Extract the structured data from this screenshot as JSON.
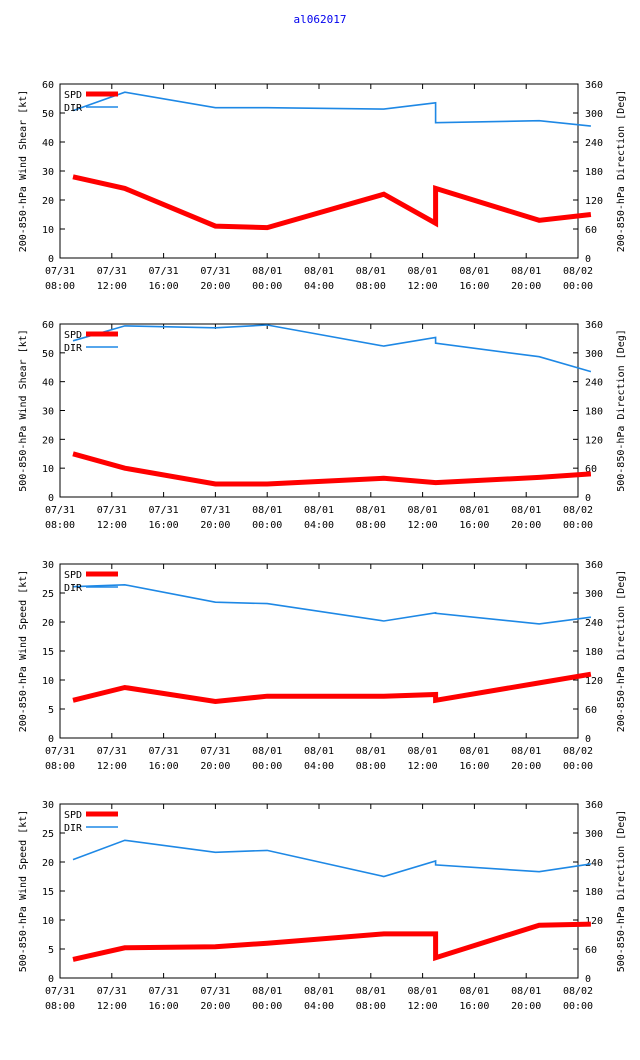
{
  "page_title": "al062017",
  "colors": {
    "spd": "#ff0000",
    "dir": "#1e88e5",
    "title": "#0000ee"
  },
  "chart_data": [
    {
      "type": "line",
      "title": "",
      "ylabel": "200-850-hPa Wind Shear [kt]",
      "y2label": "200-850-hPa Direction [Deg]",
      "ylim": [
        0,
        60
      ],
      "yticks": [
        0,
        10,
        20,
        30,
        40,
        50,
        60
      ],
      "y2lim": [
        0,
        360
      ],
      "y2ticks": [
        0,
        60,
        120,
        180,
        240,
        300,
        360
      ],
      "xlim": [
        0,
        40
      ],
      "xticks": [
        0,
        4,
        8,
        12,
        16,
        20,
        24,
        28,
        32,
        36,
        40
      ],
      "xticklabels": [
        [
          "07/31",
          "08:00"
        ],
        [
          "07/31",
          "12:00"
        ],
        [
          "07/31",
          "16:00"
        ],
        [
          "07/31",
          "20:00"
        ],
        [
          "08/01",
          "00:00"
        ],
        [
          "08/01",
          "04:00"
        ],
        [
          "08/01",
          "08:00"
        ],
        [
          "08/01",
          "12:00"
        ],
        [
          "08/01",
          "16:00"
        ],
        [
          "08/01",
          "20:00"
        ],
        [
          "08/02",
          "00:00"
        ]
      ],
      "legend": [
        "SPD",
        "DIR"
      ],
      "series": [
        {
          "name": "SPD",
          "axis": "left",
          "x": [
            1,
            5,
            12,
            16,
            25,
            29,
            29,
            37,
            41
          ],
          "values": [
            28,
            24,
            11,
            10.5,
            22,
            12,
            24,
            13,
            15
          ]
        },
        {
          "name": "DIR",
          "axis": "right",
          "x": [
            1,
            5,
            12,
            16,
            25,
            29,
            29,
            37,
            41
          ],
          "values": [
            305,
            343,
            311,
            311,
            308,
            321,
            280,
            284,
            273
          ]
        }
      ]
    },
    {
      "type": "line",
      "title": "",
      "ylabel": "500-850-hPa Wind Shear [kt]",
      "y2label": "500-850-hPa Direction [Deg]",
      "ylim": [
        0,
        60
      ],
      "yticks": [
        0,
        10,
        20,
        30,
        40,
        50,
        60
      ],
      "y2lim": [
        0,
        360
      ],
      "y2ticks": [
        0,
        60,
        120,
        180,
        240,
        300,
        360
      ],
      "xlim": [
        0,
        40
      ],
      "xticks": [
        0,
        4,
        8,
        12,
        16,
        20,
        24,
        28,
        32,
        36,
        40
      ],
      "xticklabels": [
        [
          "07/31",
          "08:00"
        ],
        [
          "07/31",
          "12:00"
        ],
        [
          "07/31",
          "16:00"
        ],
        [
          "07/31",
          "20:00"
        ],
        [
          "08/01",
          "00:00"
        ],
        [
          "08/01",
          "04:00"
        ],
        [
          "08/01",
          "08:00"
        ],
        [
          "08/01",
          "12:00"
        ],
        [
          "08/01",
          "16:00"
        ],
        [
          "08/01",
          "20:00"
        ],
        [
          "08/02",
          "00:00"
        ]
      ],
      "legend": [
        "SPD",
        "DIR"
      ],
      "series": [
        {
          "name": "SPD",
          "axis": "left",
          "x": [
            1,
            5,
            12,
            16,
            25,
            29,
            29,
            37,
            41
          ],
          "values": [
            15,
            10,
            4.5,
            4.5,
            6.5,
            5,
            5,
            6.8,
            8
          ]
        },
        {
          "name": "DIR",
          "axis": "right",
          "x": [
            1,
            5,
            12,
            16,
            25,
            29,
            29,
            37,
            41
          ],
          "values": [
            325,
            356,
            352,
            358,
            314,
            332,
            320,
            292,
            261
          ]
        }
      ]
    },
    {
      "type": "line",
      "title": "",
      "ylabel": "200-850-hPa Wind Speed [kt]",
      "y2label": "200-850-hPa Direction [Deg]",
      "ylim": [
        0,
        30
      ],
      "yticks": [
        0,
        5,
        10,
        15,
        20,
        25,
        30
      ],
      "y2lim": [
        0,
        360
      ],
      "y2ticks": [
        0,
        60,
        120,
        180,
        240,
        300,
        360
      ],
      "xlim": [
        0,
        40
      ],
      "xticks": [
        0,
        4,
        8,
        12,
        16,
        20,
        24,
        28,
        32,
        36,
        40
      ],
      "xticklabels": [
        [
          "07/31",
          "08:00"
        ],
        [
          "07/31",
          "12:00"
        ],
        [
          "07/31",
          "16:00"
        ],
        [
          "07/31",
          "20:00"
        ],
        [
          "08/01",
          "00:00"
        ],
        [
          "08/01",
          "04:00"
        ],
        [
          "08/01",
          "08:00"
        ],
        [
          "08/01",
          "12:00"
        ],
        [
          "08/01",
          "16:00"
        ],
        [
          "08/01",
          "20:00"
        ],
        [
          "08/02",
          "00:00"
        ]
      ],
      "legend": [
        "SPD",
        "DIR"
      ],
      "series": [
        {
          "name": "SPD",
          "axis": "left",
          "x": [
            1,
            5,
            12,
            16,
            25,
            29,
            29,
            37,
            41
          ],
          "values": [
            6.5,
            8.7,
            6.3,
            7.2,
            7.2,
            7.5,
            6.5,
            9.5,
            11
          ]
        },
        {
          "name": "DIR",
          "axis": "right",
          "x": [
            1,
            5,
            12,
            16,
            25,
            29,
            29,
            37,
            41
          ],
          "values": [
            313,
            317,
            281,
            278,
            242,
            259,
            258,
            236,
            250
          ]
        }
      ]
    },
    {
      "type": "line",
      "title": "",
      "ylabel": "500-850-hPa Wind Speed [kt]",
      "y2label": "500-850-hPa Direction [Deg]",
      "ylim": [
        0,
        30
      ],
      "yticks": [
        0,
        5,
        10,
        15,
        20,
        25,
        30
      ],
      "y2lim": [
        0,
        360
      ],
      "y2ticks": [
        0,
        60,
        120,
        180,
        240,
        300,
        360
      ],
      "xlim": [
        0,
        40
      ],
      "xticks": [
        0,
        4,
        8,
        12,
        16,
        20,
        24,
        28,
        32,
        36,
        40
      ],
      "xticklabels": [
        [
          "07/31",
          "08:00"
        ],
        [
          "07/31",
          "12:00"
        ],
        [
          "07/31",
          "16:00"
        ],
        [
          "07/31",
          "20:00"
        ],
        [
          "08/01",
          "00:00"
        ],
        [
          "08/01",
          "04:00"
        ],
        [
          "08/01",
          "08:00"
        ],
        [
          "08/01",
          "12:00"
        ],
        [
          "08/01",
          "16:00"
        ],
        [
          "08/01",
          "20:00"
        ],
        [
          "08/02",
          "00:00"
        ]
      ],
      "legend": [
        "SPD",
        "DIR"
      ],
      "series": [
        {
          "name": "SPD",
          "axis": "left",
          "x": [
            1,
            5,
            12,
            16,
            25,
            29,
            29,
            37,
            41
          ],
          "values": [
            3.2,
            5.2,
            5.4,
            6,
            7.6,
            7.6,
            3.5,
            9.1,
            9.3
          ]
        },
        {
          "name": "DIR",
          "axis": "right",
          "x": [
            1,
            5,
            12,
            16,
            25,
            29,
            29,
            37,
            41
          ],
          "values": [
            245,
            285,
            260,
            264,
            210,
            242,
            234,
            220,
            236
          ]
        }
      ]
    }
  ]
}
